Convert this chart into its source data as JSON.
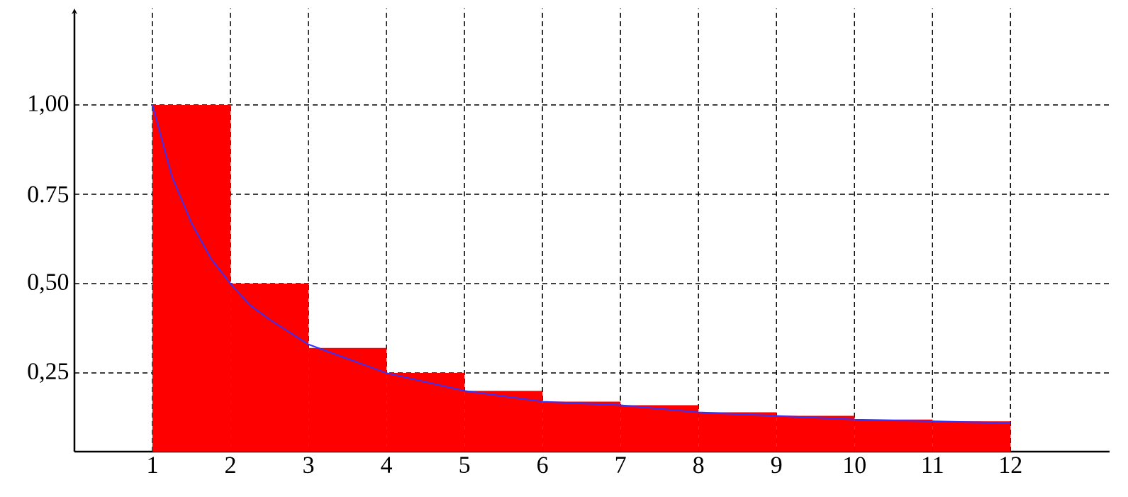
{
  "chart_data": {
    "type": "histogram",
    "series": [
      {
        "color": "#ff0000",
        "bins": [
          1,
          2,
          3,
          4,
          5,
          6,
          7,
          8,
          9,
          10,
          11,
          12
        ],
        "values": [
          1.0,
          0.5,
          0.32,
          0.25,
          0.2,
          0.17,
          0.16,
          0.14,
          0.13,
          0.12,
          0.115
        ]
      },
      {
        "type": "line",
        "color": "#3333ff",
        "x": [
          1,
          1.25,
          1.5,
          1.75,
          2,
          2.25,
          2.5,
          3,
          3.5,
          4,
          5,
          6,
          7,
          8,
          9,
          10,
          11,
          12
        ],
        "values": [
          1.0,
          0.8,
          0.67,
          0.57,
          0.5,
          0.44,
          0.4,
          0.33,
          0.29,
          0.25,
          0.2,
          0.17,
          0.16,
          0.14,
          0.13,
          0.12,
          0.115,
          0.11
        ]
      }
    ],
    "xlim": [
      0,
      13.27
    ],
    "ylim": [
      0.03,
      1.27
    ],
    "xticks": [
      1,
      2,
      3,
      4,
      5,
      6,
      7,
      8,
      9,
      10,
      11,
      12
    ],
    "yticks": [
      {
        "value": 0.25,
        "label": "0,25"
      },
      {
        "value": 0.5,
        "label": "0,50"
      },
      {
        "value": 0.75,
        "label": "0.75"
      },
      {
        "value": 1.0,
        "label": "1,00"
      }
    ],
    "grid": true,
    "line_style": "solid"
  }
}
